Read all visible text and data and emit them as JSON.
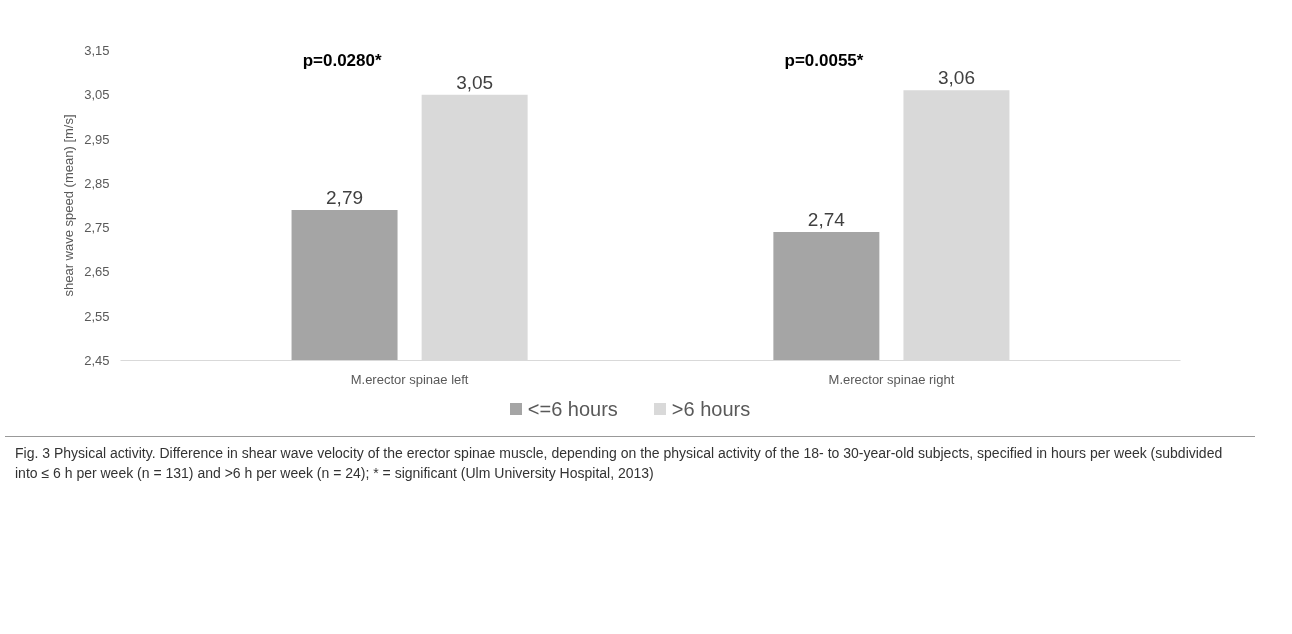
{
  "chart_data": {
    "type": "bar",
    "ylabel": "shear wave speed (mean) [m/s]",
    "categories": [
      "M.erector spinae left",
      "M.erector spinae right"
    ],
    "series": [
      {
        "name": "<=6 hours",
        "color": "#a5a5a5",
        "values": [
          2.79,
          2.74
        ],
        "value_labels": [
          "2,79",
          "2,74"
        ]
      },
      {
        "name": ">6 hours",
        "color": "#d9d9d9",
        "values": [
          3.05,
          3.06
        ],
        "value_labels": [
          "3,05",
          "3,06"
        ]
      }
    ],
    "ylim": [
      2.45,
      3.15
    ],
    "yticks": [
      {
        "value": 2.45,
        "label": "2,45"
      },
      {
        "value": 2.55,
        "label": "2,55"
      },
      {
        "value": 2.65,
        "label": "2,65"
      },
      {
        "value": 2.75,
        "label": "2,75"
      },
      {
        "value": 2.85,
        "label": "2,85"
      },
      {
        "value": 2.95,
        "label": "2,95"
      },
      {
        "value": 3.05,
        "label": "3,05"
      },
      {
        "value": 3.15,
        "label": "3,15"
      }
    ],
    "grid": false,
    "legend": "bottom",
    "annotations": [
      "p=0.0280*",
      "p=0.0055*",
      "Fig. 3 Physical activity. Difference in shear wave velocity of the erector spinae muscle, depending on the physical activity of the 18- to 30-year-old subjects, specified in hours per week (subdivided into ≤ 6 h per week (n = 131) and >6 h per week (n = 24); * = significant (Ulm University Hospital, 2013)"
    ]
  }
}
